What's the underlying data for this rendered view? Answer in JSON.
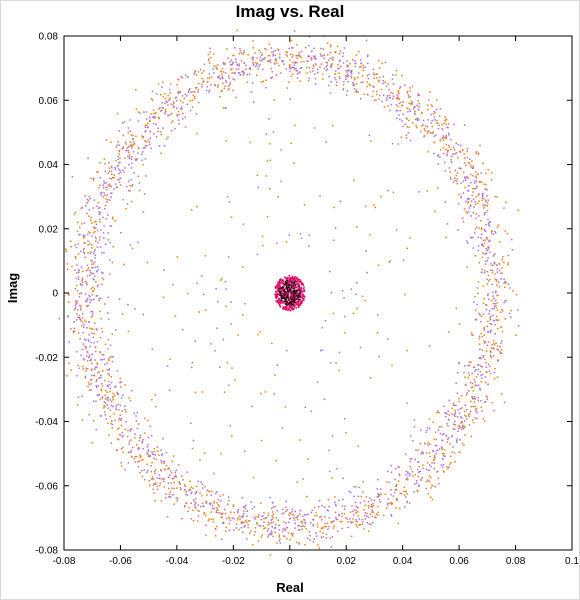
{
  "chart_data": {
    "type": "scatter",
    "title": "Imag vs. Real",
    "xlabel": "Real",
    "ylabel": "Imag",
    "xlim": [
      -0.08,
      0.1
    ],
    "ylim": [
      -0.08,
      0.08
    ],
    "x_ticks": [
      "-0.08",
      "-0.06",
      "-0.04",
      "-0.02",
      "0",
      "0.02",
      "0.04",
      "0.06",
      "0.08",
      "0.1"
    ],
    "y_ticks": [
      "0.08",
      "0.06",
      "0.04",
      "0.02",
      "0",
      "-0.02",
      "-0.04",
      "-0.06",
      "-0.08"
    ],
    "grid": false,
    "colors": {
      "ring_a": "#f08010",
      "ring_b": "#a870f0",
      "core_a": "#e0106a",
      "core_b": "#101010"
    },
    "series": [
      {
        "color": "#f08010",
        "shape": "ring",
        "center": [
          0.0,
          0.0
        ],
        "radius": 0.073,
        "spread": 0.0035,
        "count": 1500,
        "sparse_interior": 120
      },
      {
        "color": "#a870f0",
        "shape": "ring",
        "center": [
          0.0,
          0.0
        ],
        "radius": 0.072,
        "spread": 0.0035,
        "count": 1500,
        "sparse_interior": 120
      },
      {
        "color": "#e0106a",
        "shape": "cluster",
        "center": [
          0.0,
          0.0
        ],
        "radius": 0.0055,
        "count": 600
      },
      {
        "color": "#101010",
        "shape": "cluster",
        "center": [
          0.0,
          0.0
        ],
        "radius": 0.004,
        "count": 120
      }
    ]
  }
}
